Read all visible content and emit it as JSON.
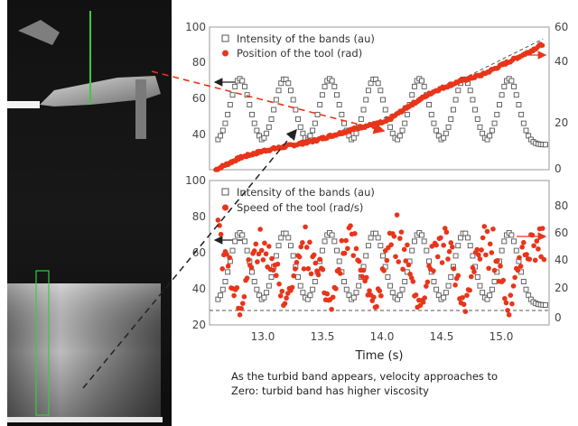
{
  "chart_data": [
    {
      "type": "scatter",
      "ylabel_left": "",
      "ylabel_right": "",
      "xlim": [
        12.65,
        15.45
      ],
      "ylim_left": [
        20,
        100
      ],
      "ylim_right": [
        0,
        60
      ],
      "yticks_left": [
        "100",
        "80",
        "60",
        "40",
        "20"
      ],
      "yticks_right": [
        "60",
        "40",
        "20",
        "0"
      ],
      "legend": [
        {
          "marker": "open-square",
          "label": "Intensity of the bands (au)"
        },
        {
          "marker": "filled-circle",
          "label": "Position of the tool (rad)"
        }
      ],
      "series": [
        {
          "name": "Intensity of the bands (au)",
          "axis": "left",
          "period_s": 0.37,
          "peaks_x": [
            12.9,
            13.27,
            13.64,
            14.01,
            14.38,
            14.75,
            15.12
          ],
          "min": 34,
          "max": 71
        },
        {
          "name": "Position of the tool (rad)",
          "axis": "right",
          "x": [
            12.7,
            12.9,
            13.1,
            13.3,
            13.5,
            13.7,
            13.9,
            14.1,
            14.3,
            14.5,
            14.7,
            14.9,
            15.1,
            15.3,
            15.4
          ],
          "y": [
            0,
            5,
            8,
            10,
            12,
            15,
            18,
            20,
            27,
            33,
            37,
            40,
            45,
            50,
            53
          ]
        }
      ],
      "reference_line": {
        "style": "dashed",
        "axis": "right",
        "x": [
          13.9,
          15.4
        ],
        "y": [
          17,
          55
        ]
      }
    },
    {
      "type": "scatter",
      "xlabel": "Time (s)",
      "xlim": [
        12.65,
        15.45
      ],
      "xticks": [
        "13.0",
        "13.5",
        "14.0",
        "14.5",
        "15.0"
      ],
      "ylim_left": [
        20,
        100
      ],
      "ylim_right": [
        -10,
        90
      ],
      "yticks_left": [
        "100",
        "80",
        "60",
        "40",
        "20"
      ],
      "yticks_right": [
        "80",
        "60",
        "40",
        "20",
        "0"
      ],
      "legend": [
        {
          "marker": "open-square",
          "label": "Intensity of the bands (au)"
        },
        {
          "marker": "filled-circle",
          "label": "Speed of the tool (rad/s)"
        }
      ],
      "series": [
        {
          "name": "Intensity of the bands (au)",
          "axis": "left",
          "period_s": 0.37,
          "peaks_x": [
            12.9,
            13.27,
            13.64,
            14.01,
            14.38,
            14.75,
            15.12
          ],
          "min": 31,
          "max": 71
        },
        {
          "name": "Speed of the tool (rad/s)",
          "axis": "right",
          "period_s": 0.37,
          "min": 0,
          "max": 60
        }
      ],
      "reference_line": {
        "style": "dashed",
        "axis": "right",
        "y": 0
      }
    }
  ],
  "caption": {
    "line1": "As the turbid band appears, velocity approaches to",
    "line2": "Zero: turbid band has higher viscosity"
  },
  "colors": {
    "red": "#e8351a",
    "square": "#555555",
    "arrow_black": "#222222",
    "green_box": "#3ec93e"
  }
}
